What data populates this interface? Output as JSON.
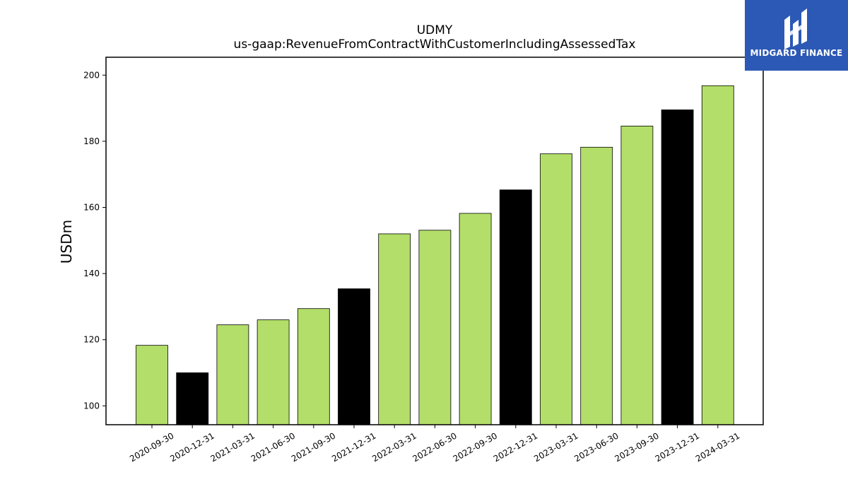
{
  "chart_data": {
    "type": "bar",
    "title": "UDMY",
    "subtitle": "us-gaap:RevenueFromContractWithCustomerIncludingAssessedTax",
    "xlabel": "",
    "ylabel": "USDm",
    "ylim": [
      94.3,
      205.4
    ],
    "yticks": [
      100,
      120,
      140,
      160,
      180,
      200
    ],
    "grid": false,
    "categories": [
      "2020-09-30",
      "2020-12-31",
      "2021-03-31",
      "2021-06-30",
      "2021-09-30",
      "2021-12-31",
      "2022-03-31",
      "2022-06-30",
      "2022-09-30",
      "2022-12-31",
      "2023-03-31",
      "2023-06-30",
      "2023-09-30",
      "2023-12-31",
      "2024-03-31"
    ],
    "values": [
      118.3,
      110.0,
      124.5,
      126.0,
      129.4,
      135.4,
      152.0,
      153.1,
      158.2,
      165.3,
      176.2,
      178.2,
      184.6,
      189.5,
      196.8
    ],
    "bar_colors": [
      "#b3de69",
      "#000000",
      "#b3de69",
      "#b3de69",
      "#b3de69",
      "#000000",
      "#b3de69",
      "#b3de69",
      "#b3de69",
      "#000000",
      "#b3de69",
      "#b3de69",
      "#b3de69",
      "#000000",
      "#b3de69"
    ]
  },
  "logo": {
    "text": "MIDGARD FINANCE",
    "background": "#2b59b5"
  }
}
